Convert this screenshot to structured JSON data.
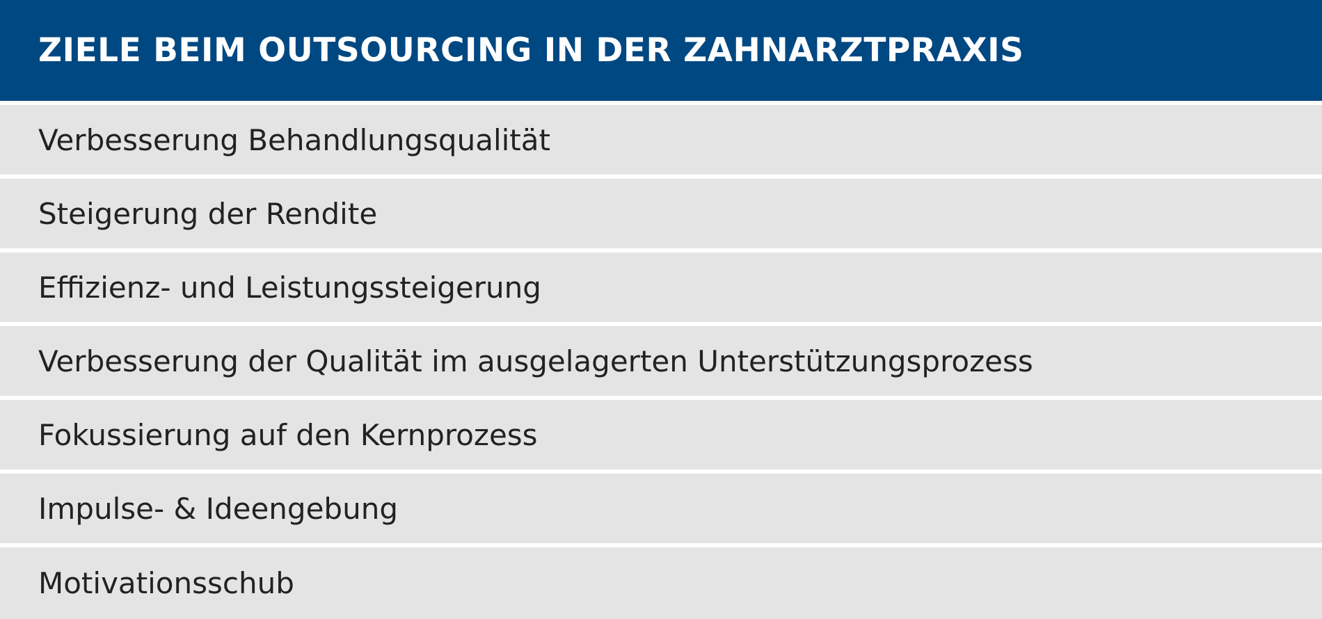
{
  "header": {
    "title": "ZIELE BEIM OUTSOURCING IN DER ZAHNARZTPRAXIS"
  },
  "table": {
    "rows": [
      "Verbesserung Behandlungsqualität",
      "Steigerung der Rendite",
      "Effizienz- und Leistungssteigerung",
      "Verbesserung der Qualität im ausgelagerten Unterstützungsprozess",
      "Fokussierung auf den Kernprozess",
      "Impulse- & Ideengebung",
      "Motivationsschub"
    ]
  }
}
